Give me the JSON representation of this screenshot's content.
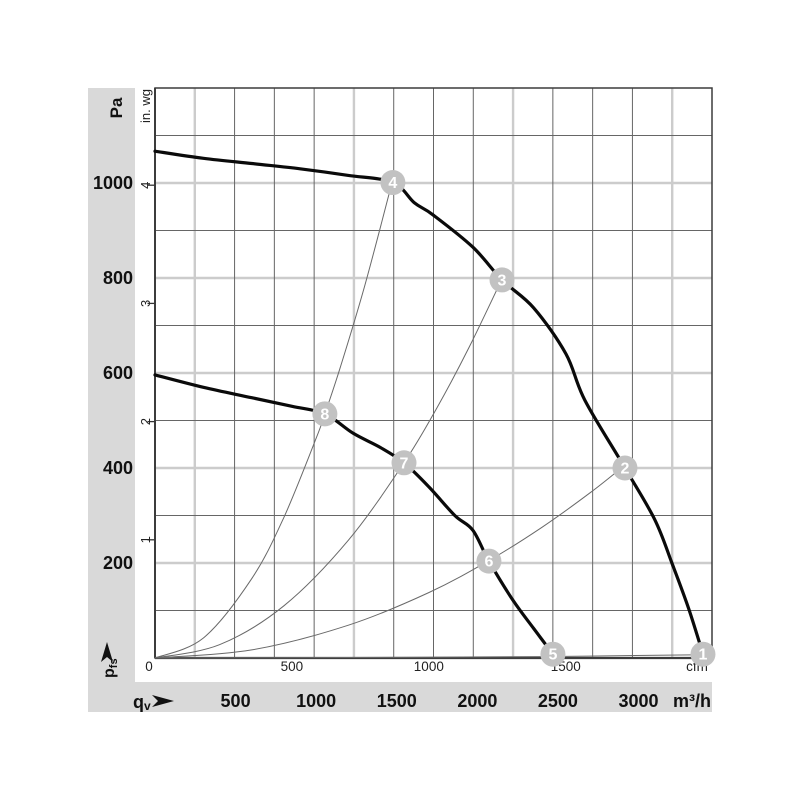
{
  "chart_data": {
    "type": "line",
    "description": "Fan performance curves: static pressure vs volume flow",
    "colors": {
      "band": "#d9d9d9",
      "grid_dark": "#666666",
      "grid_light": "#cccccc",
      "frame": "#3c3c3c",
      "fan_curve": "#0a0a0a",
      "system_curve": "#696969",
      "marker_fill": "#c2c2c2",
      "marker_text": "#ffffff",
      "text": "#111111"
    },
    "y_axis_left": {
      "title": "Pa",
      "range": [
        0,
        1200
      ],
      "labels": [
        1000,
        800,
        600,
        400,
        200
      ]
    },
    "y_axis_inner": {
      "title": "in. wg",
      "pa_per_unit": 248.84,
      "ticks": [
        4,
        3,
        2,
        1
      ]
    },
    "y_axis_bottom_symbol": {
      "symbol": "p",
      "symbol_sub": "fs"
    },
    "x_axis_inner": {
      "unit": "cfm",
      "m3h_per_cfm": 1.699,
      "ticks": [
        0,
        500,
        1000,
        1500
      ]
    },
    "x_axis_outer": {
      "symbol": "q",
      "symbol_sub": "v",
      "unit": "m³/h",
      "range_m3h": [
        0,
        3456
      ],
      "ticks": [
        500,
        1000,
        1500,
        2000,
        2500,
        3000
      ]
    },
    "series": [
      {
        "name": "fan-curve-high-speed",
        "role": "fan-curve",
        "points": [
          [
            0,
            1067
          ],
          [
            300,
            1052
          ],
          [
            600,
            1041
          ],
          [
            900,
            1030
          ],
          [
            1200,
            1016
          ],
          [
            1476,
            1001
          ],
          [
            1610,
            958
          ],
          [
            1724,
            933
          ],
          [
            1972,
            865
          ],
          [
            2153,
            796
          ],
          [
            2350,
            737
          ],
          [
            2550,
            640
          ],
          [
            2667,
            543
          ],
          [
            2916,
            400
          ],
          [
            3100,
            292
          ],
          [
            3207,
            200
          ],
          [
            3310,
            105
          ],
          [
            3400,
            8
          ]
        ]
      },
      {
        "name": "fan-curve-low-speed",
        "role": "fan-curve",
        "points": [
          [
            0,
            596
          ],
          [
            300,
            570
          ],
          [
            600,
            548
          ],
          [
            850,
            530
          ],
          [
            1054,
            514
          ],
          [
            1230,
            473
          ],
          [
            1400,
            443
          ],
          [
            1545,
            411
          ],
          [
            1700,
            360
          ],
          [
            1860,
            300
          ],
          [
            1972,
            269
          ],
          [
            2072,
            204
          ],
          [
            2220,
            122
          ],
          [
            2350,
            62
          ],
          [
            2469,
            8
          ]
        ]
      },
      {
        "name": "system-curve-1",
        "role": "system-curve",
        "points": [
          [
            0,
            0
          ],
          [
            300,
            42
          ],
          [
            600,
            167
          ],
          [
            800,
            296
          ],
          [
            1000,
            463
          ],
          [
            1054,
            514
          ],
          [
            1150,
            612
          ],
          [
            1300,
            782
          ],
          [
            1476,
            1008
          ]
        ]
      },
      {
        "name": "system-curve-2",
        "role": "system-curve",
        "points": [
          [
            0,
            0
          ],
          [
            400,
            28
          ],
          [
            800,
            110
          ],
          [
            1200,
            248
          ],
          [
            1545,
            411
          ],
          [
            1750,
            527
          ],
          [
            1950,
            655
          ],
          [
            2153,
            798
          ]
        ]
      },
      {
        "name": "system-curve-3",
        "role": "system-curve",
        "points": [
          [
            0,
            0
          ],
          [
            600,
            17
          ],
          [
            1200,
            69
          ],
          [
            1700,
            138
          ],
          [
            2072,
            205
          ],
          [
            2400,
            275
          ],
          [
            2700,
            348
          ],
          [
            2916,
            406
          ]
        ]
      },
      {
        "name": "system-curve-4",
        "role": "system-curve",
        "points": [
          [
            0,
            0
          ],
          [
            1200,
            1
          ],
          [
            2400,
            3
          ],
          [
            3400,
            7
          ]
        ]
      }
    ],
    "markers": [
      {
        "label": "1",
        "q_m3h": 3400,
        "pa": 8
      },
      {
        "label": "2",
        "q_m3h": 2916,
        "pa": 400
      },
      {
        "label": "3",
        "q_m3h": 2153,
        "pa": 796
      },
      {
        "label": "4",
        "q_m3h": 1476,
        "pa": 1001
      },
      {
        "label": "5",
        "q_m3h": 2469,
        "pa": 8
      },
      {
        "label": "6",
        "q_m3h": 2072,
        "pa": 204
      },
      {
        "label": "7",
        "q_m3h": 1545,
        "pa": 411
      },
      {
        "label": "8",
        "q_m3h": 1054,
        "pa": 514
      }
    ]
  }
}
